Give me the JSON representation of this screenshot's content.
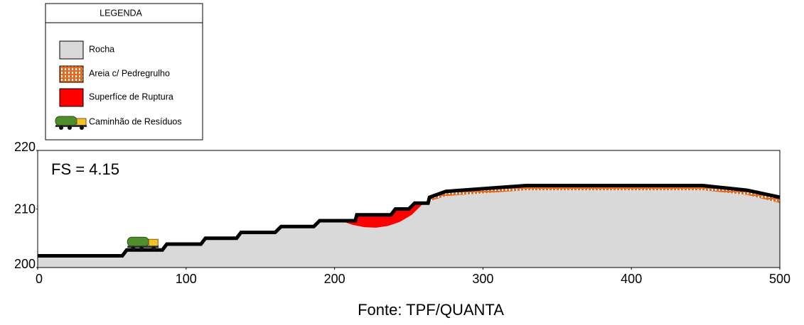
{
  "chart_data": {
    "type": "section",
    "legend_title": "LEGENDA",
    "annotation": "FS = 4.15",
    "source": "Fonte: TPF/QUANTA",
    "xlim": [
      0,
      500
    ],
    "ylim": [
      200,
      220
    ],
    "xticks": [
      0,
      100,
      200,
      300,
      400,
      500
    ],
    "yticks": [
      200,
      210,
      220
    ],
    "series": [
      {
        "name": "Rocha",
        "color": "#d9d9d9",
        "x": [
          0,
          57,
          60,
          84,
          87,
          110,
          113,
          134,
          137,
          160,
          164,
          186,
          190,
          214,
          215,
          238,
          241,
          250,
          254,
          263,
          264,
          275,
          329,
          448,
          478,
          500
        ],
        "values": [
          202,
          202,
          203,
          203,
          204,
          204,
          205,
          205,
          206,
          206,
          207,
          207,
          208,
          208,
          209,
          209,
          210,
          210,
          211,
          211,
          211.3,
          212.2,
          213.2,
          213.2,
          212.4,
          211
        ]
      },
      {
        "name": "Areia c/ Pedregrulho",
        "color": "#e8691e",
        "x": [
          264,
          275,
          329,
          448,
          478,
          500
        ],
        "values": [
          212,
          213,
          214,
          214,
          213.2,
          212
        ]
      },
      {
        "name": "Superfíce de Ruptura",
        "color": "#ff0000",
        "x": [
          204,
          212,
          220,
          228,
          236,
          244,
          252,
          260
        ],
        "values": [
          208,
          207.3,
          206.9,
          206.8,
          207.1,
          207.8,
          209,
          211
        ]
      },
      {
        "name": "Caminhão de Resíduos",
        "color": "#4e8f2c",
        "x": [
          71
        ],
        "values": [
          203
        ]
      }
    ]
  }
}
